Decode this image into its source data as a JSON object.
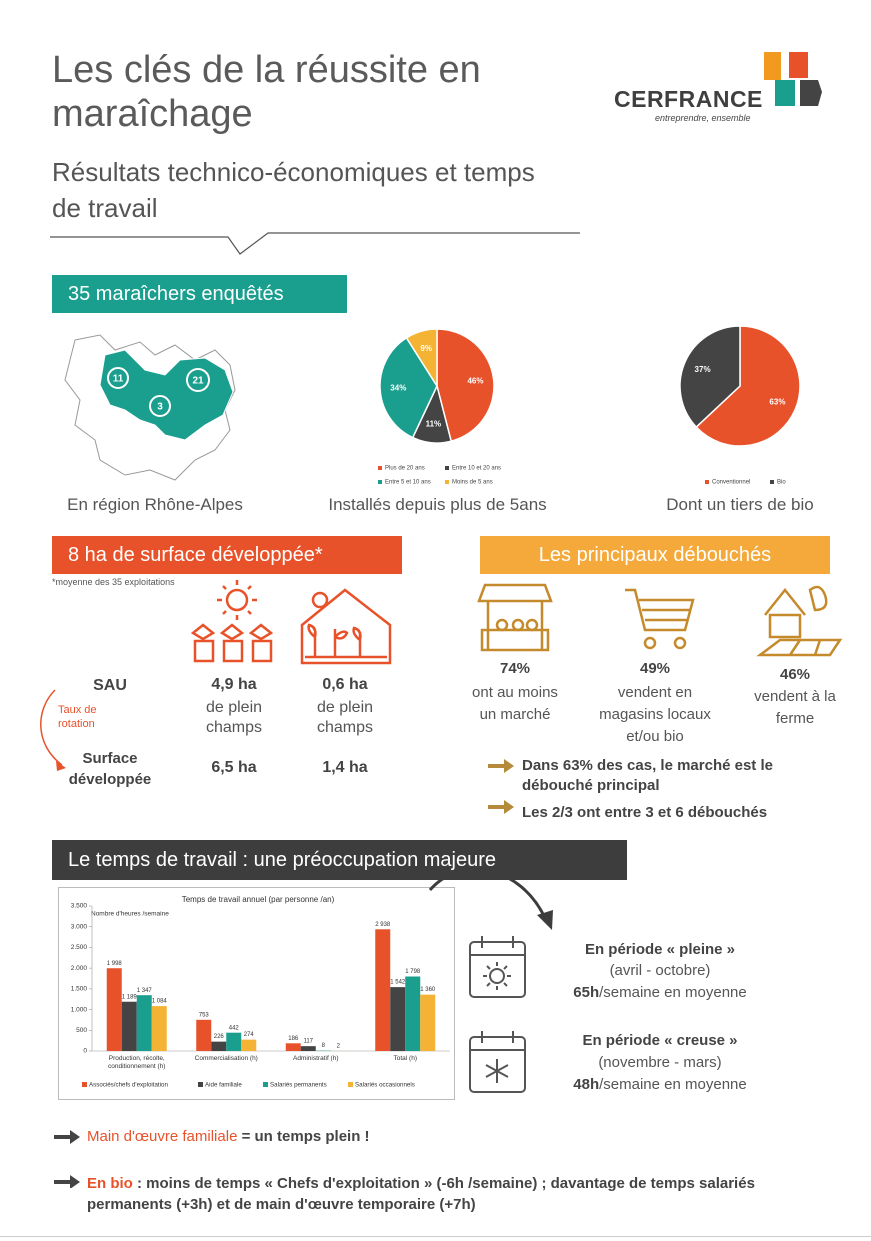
{
  "header": {
    "title": "Les clés de la réussite en maraîchage",
    "subtitle": "Résultats technico-économiques et temps de travail"
  },
  "logo": {
    "name": "CERFRANCE",
    "tagline": "entreprendre, ensemble"
  },
  "survey": {
    "title": "35 maraîchers enquêtés",
    "map_labels": [
      11,
      3,
      21
    ],
    "map_caption": "En région Rhône-Alpes"
  },
  "chart_data": [
    {
      "type": "pie",
      "caption": "Installés depuis plus de 5ans",
      "categories": [
        "Plus de 20 ans",
        "Entre 10 et 20 ans",
        "Entre 5 et 10 ans",
        "Moins de 5 ans"
      ],
      "values": [
        46,
        11,
        34,
        9
      ],
      "value_labels": [
        "46%",
        "11%",
        "34%",
        "9%"
      ],
      "colors": [
        "#e8522a",
        "#444444",
        "#1a9e8e",
        "#f5b335"
      ]
    },
    {
      "type": "pie",
      "caption": "Dont un tiers de bio",
      "categories": [
        "Conventionnel",
        "Bio"
      ],
      "values": [
        63,
        37
      ],
      "value_labels": [
        "63%",
        "37%"
      ],
      "colors": [
        "#e8522a",
        "#444444"
      ]
    },
    {
      "type": "bar",
      "title": "Temps de travail annuel (par personne /an)",
      "y_label": "Nombre d'heures /semaine",
      "categories": [
        "Production, récolte, conditionnement (h)",
        "Commercialisation (h)",
        "Administratif (h)",
        "Total (h)"
      ],
      "series": [
        {
          "name": "Associés/chefs d'exploitation",
          "color": "#e8522a",
          "values": [
            1998,
            753,
            186,
            2938
          ],
          "value_labels": [
            "1 998",
            "753",
            "186",
            "2 938"
          ]
        },
        {
          "name": "Aide familiale",
          "color": "#444444",
          "values": [
            1189,
            226,
            117,
            1542
          ],
          "value_labels": [
            "1 189",
            "226",
            "117",
            "1 542"
          ]
        },
        {
          "name": "Salariés permanents",
          "color": "#1a9e8e",
          "values": [
            1347,
            442,
            8,
            1798
          ],
          "value_labels": [
            "1 347",
            "442",
            "8",
            "1 798"
          ]
        },
        {
          "name": "Salariés occasionnels",
          "color": "#f5b335",
          "values": [
            1084,
            274,
            2,
            1360
          ],
          "value_labels": [
            "1 084",
            "274",
            "2",
            "1 360"
          ]
        }
      ],
      "ylim": [
        0,
        3500
      ],
      "yticks": [
        0,
        500,
        {
          "value": 1000,
          "label": "1.000"
        },
        {
          "value": 1500,
          "label": "1.500"
        },
        {
          "value": 2000,
          "label": "2.000"
        },
        {
          "value": 2500,
          "label": "2.500"
        },
        {
          "value": 3000,
          "label": "3.000"
        },
        {
          "value": 3500,
          "label": "3.500"
        }
      ],
      "grid": false
    }
  ],
  "surface": {
    "title": "8 ha de surface développée*",
    "note": "*moyenne des 35 exploitations",
    "sau_label": "SAU",
    "rotation_label": "Taux de rotation",
    "developed_label": "Surface développée",
    "columns": [
      {
        "sau": "4,9 ha",
        "type": "de plein champs",
        "developed": "6,5 ha"
      },
      {
        "sau": "0,6 ha",
        "type": "de plein champs",
        "developed": "1,4 ha"
      }
    ]
  },
  "outlets": {
    "title": "Les principaux débouchés",
    "items": [
      {
        "value": "74%",
        "text": "ont au moins un marché"
      },
      {
        "value": "49%",
        "text": "vendent en magasins locaux et/ou bio"
      },
      {
        "value": "46%",
        "text": "vendent à la ferme"
      }
    ],
    "bullets": [
      "Dans 63% des cas, le marché est le débouché principal",
      "Les 2/3 ont entre 3 et 6 débouchés"
    ]
  },
  "work": {
    "title": "Le temps de travail : une préoccupation majeure",
    "periods": [
      {
        "title": "En période « pleine »",
        "months": "(avril - octobre)",
        "hours": "65h",
        "rest": "/semaine en moyenne"
      },
      {
        "title": "En période « creuse »",
        "months": "(novembre - mars)",
        "hours": "48h",
        "rest": "/semaine en moyenne"
      }
    ],
    "notes": [
      {
        "highlight": "Main d'œuvre familiale",
        "text": "= un temps plein !"
      },
      {
        "highlight": "En bio",
        "text": ": moins de temps « Chefs d'exploitation » (-6h /semaine) ; davantage de temps salariés permanents (+3h) et de main d'œuvre temporaire (+7h)"
      }
    ]
  }
}
